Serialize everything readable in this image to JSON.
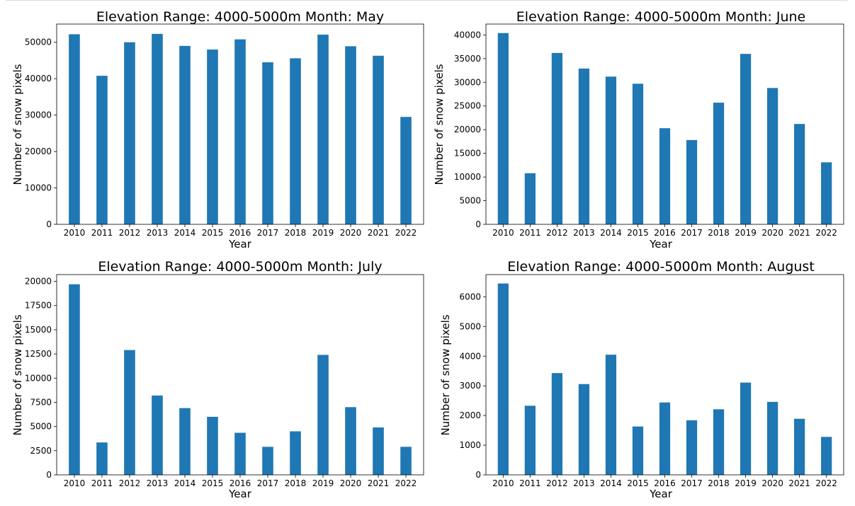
{
  "colors": {
    "bar": "#1f77b4",
    "axis": "#000000"
  },
  "chart_data": [
    {
      "type": "bar",
      "title": "Elevation Range: 4000-5000m Month: May",
      "xlabel": "Year",
      "ylabel": "Number of snow pixels",
      "categories": [
        "2010",
        "2011",
        "2012",
        "2013",
        "2014",
        "2015",
        "2016",
        "2017",
        "2018",
        "2019",
        "2020",
        "2021",
        "2022"
      ],
      "values": [
        52200,
        40800,
        50000,
        52300,
        49000,
        48000,
        50800,
        44500,
        45600,
        52100,
        48900,
        46300,
        29500
      ],
      "ylim": [
        0,
        55000
      ],
      "yticks": [
        0,
        10000,
        20000,
        30000,
        40000,
        50000
      ],
      "grid": false
    },
    {
      "type": "bar",
      "title": "Elevation Range: 4000-5000m Month: June",
      "xlabel": "Year",
      "ylabel": "Number of snow pixels",
      "categories": [
        "2010",
        "2011",
        "2012",
        "2013",
        "2014",
        "2015",
        "2016",
        "2017",
        "2018",
        "2019",
        "2020",
        "2021",
        "2022"
      ],
      "values": [
        40400,
        10800,
        36200,
        32900,
        31200,
        29700,
        20300,
        17800,
        25700,
        36000,
        28800,
        21200,
        13100
      ],
      "ylim": [
        0,
        42300
      ],
      "yticks": [
        0,
        5000,
        10000,
        15000,
        20000,
        25000,
        30000,
        35000,
        40000
      ],
      "grid": false
    },
    {
      "type": "bar",
      "title": "Elevation Range: 4000-5000m Month: July",
      "xlabel": "Year",
      "ylabel": "Number of snow pixels",
      "categories": [
        "2010",
        "2011",
        "2012",
        "2013",
        "2014",
        "2015",
        "2016",
        "2017",
        "2018",
        "2019",
        "2020",
        "2021",
        "2022"
      ],
      "values": [
        19700,
        3350,
        12900,
        8200,
        6900,
        6000,
        4350,
        2900,
        4500,
        12400,
        7000,
        4900,
        2900
      ],
      "ylim": [
        0,
        20700
      ],
      "yticks": [
        0,
        2500,
        5000,
        7500,
        10000,
        12500,
        15000,
        17500,
        20000
      ],
      "grid": false
    },
    {
      "type": "bar",
      "title": "Elevation Range: 4000-5000m Month: August",
      "xlabel": "Year",
      "ylabel": "Number of snow pixels",
      "categories": [
        "2010",
        "2011",
        "2012",
        "2013",
        "2014",
        "2015",
        "2016",
        "2017",
        "2018",
        "2019",
        "2020",
        "2021",
        "2022"
      ],
      "values": [
        6450,
        2330,
        3430,
        3060,
        4050,
        1630,
        2440,
        1840,
        2210,
        3110,
        2460,
        1890,
        1280
      ],
      "ylim": [
        0,
        6750
      ],
      "yticks": [
        0,
        1000,
        2000,
        3000,
        4000,
        5000,
        6000
      ],
      "grid": false
    }
  ]
}
